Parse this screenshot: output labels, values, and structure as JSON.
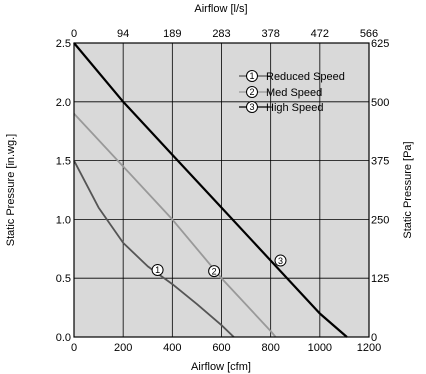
{
  "chart_data": {
    "type": "line",
    "title": "",
    "xlabel": "Airflow [cfm]",
    "ylabel": "Static Pressure [in.wg.]",
    "x2label": "Airflow [l/s]",
    "y2label": "Static Pressure [Pa]",
    "xlim": [
      0,
      1200
    ],
    "ylim": [
      0,
      2.5
    ],
    "x_ticks": [
      0,
      200,
      400,
      600,
      800,
      1000,
      1200
    ],
    "x_tick_labels": [
      "0",
      "200",
      "400",
      "600",
      "800",
      "1000",
      "1200"
    ],
    "y_ticks": [
      0,
      0.5,
      1.0,
      1.5,
      2.0,
      2.5
    ],
    "y_tick_labels": [
      "0.0",
      "0.5",
      "1.0",
      "1.5",
      "2.0",
      "2.5"
    ],
    "x2_tick_labels": [
      "0",
      "94",
      "189",
      "283",
      "378",
      "472",
      "566"
    ],
    "y2_tick_labels": [
      "0",
      "125",
      "250",
      "375",
      "500",
      "625"
    ],
    "grid": true,
    "legend_position": "top-right",
    "series": [
      {
        "name": "Reduced Speed",
        "marker_label": "1",
        "color": "#555555",
        "x": [
          0,
          100,
          200,
          300,
          400,
          500,
          600,
          650
        ],
        "y": [
          1.5,
          1.1,
          0.8,
          0.6,
          0.45,
          0.28,
          0.1,
          0.0
        ],
        "marker_at": [
          340,
          0.57
        ]
      },
      {
        "name": "Med Speed",
        "marker_label": "2",
        "color": "#999999",
        "x": [
          0,
          200,
          400,
          600,
          800,
          820
        ],
        "y": [
          1.9,
          1.45,
          1.0,
          0.5,
          0.05,
          0.0
        ],
        "marker_at": [
          570,
          0.56
        ]
      },
      {
        "name": "High Speed",
        "marker_label": "3",
        "color": "#000000",
        "x": [
          0,
          200,
          400,
          600,
          800,
          1000,
          1110
        ],
        "y": [
          2.5,
          2.0,
          1.55,
          1.1,
          0.65,
          0.2,
          0.0
        ],
        "marker_at": [
          840,
          0.65
        ]
      }
    ]
  }
}
